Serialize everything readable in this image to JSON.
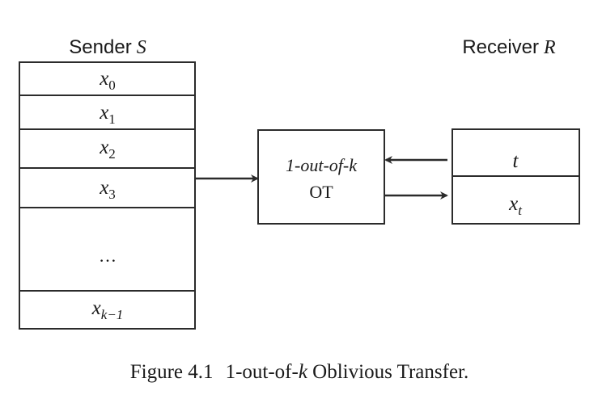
{
  "sender": {
    "label": "Sender",
    "symbol": "S",
    "cells": [
      {
        "base": "x",
        "sub": "0"
      },
      {
        "base": "x",
        "sub": "1"
      },
      {
        "base": "x",
        "sub": "2"
      },
      {
        "base": "x",
        "sub": "3"
      },
      {
        "base": "…",
        "sub": ""
      },
      {
        "base": "x",
        "sub": "k−1"
      }
    ]
  },
  "ot": {
    "line1": "1-out-of-k",
    "line2": "OT"
  },
  "receiver": {
    "label": "Receiver",
    "symbol": "R",
    "cells": [
      {
        "base": "t",
        "sub": ""
      },
      {
        "base": "x",
        "sub": "t"
      }
    ]
  },
  "caption": {
    "prefix": "Figure 4.1",
    "text_before": "1-out-of-",
    "text_k": "k",
    "text_after": " Oblivious Transfer."
  },
  "colors": {
    "stroke": "#2b2b2b",
    "text": "#1a1a1a"
  }
}
